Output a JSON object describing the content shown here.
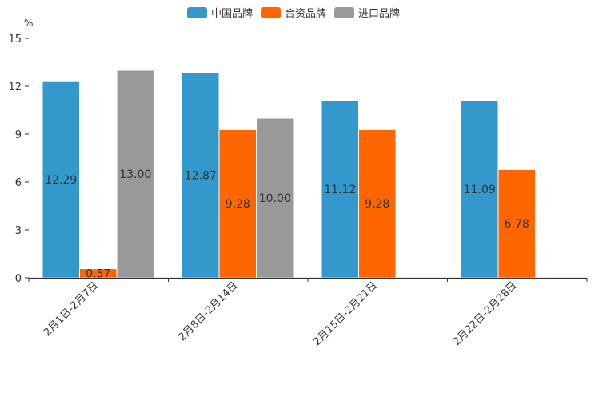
{
  "chart_data": {
    "type": "bar",
    "title": "",
    "xlabel": "",
    "ylabel": "%",
    "ylim": [
      0,
      15
    ],
    "yticks": [
      0,
      3,
      6,
      9,
      12,
      15
    ],
    "grid": false,
    "legend_position": "top-center",
    "categories": [
      "2月1日-2月7日",
      "2月8日-2月14日",
      "2月15日-2月21日",
      "2月22日-2月28日"
    ],
    "series": [
      {
        "name": "中国品牌",
        "color": "#3399cc",
        "values": [
          12.29,
          12.87,
          11.12,
          11.09
        ],
        "labels": [
          "12.29",
          "12.87",
          "11.12",
          "11.09"
        ]
      },
      {
        "name": "合资品牌",
        "color": "#ff6600",
        "values": [
          0.57,
          9.28,
          9.28,
          6.78
        ],
        "labels": [
          "0.57",
          "9.28",
          "9.28",
          "6.78"
        ]
      },
      {
        "name": "进口品牌",
        "color": "#999999",
        "values": [
          13.0,
          10.0,
          null,
          null
        ],
        "labels": [
          "13.00",
          "10.00",
          null,
          null
        ]
      }
    ]
  }
}
